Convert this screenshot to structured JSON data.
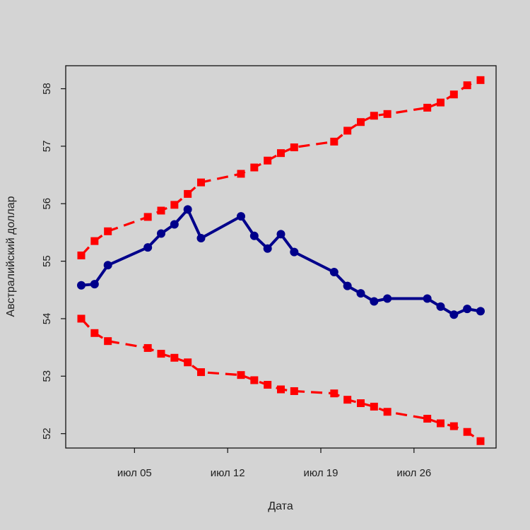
{
  "chart_data": {
    "type": "line",
    "title": "",
    "xlabel": "Дата",
    "ylabel": "Австралийский доллар",
    "x_ticks": [
      "июл 05",
      "июл 12",
      "июл 19",
      "июл 26"
    ],
    "x_tick_days": [
      5,
      12,
      19,
      26
    ],
    "xlim": [
      1,
      31
    ],
    "y_ticks": [
      52,
      53,
      54,
      55,
      56,
      57,
      58
    ],
    "ylim": [
      51.75,
      58.4
    ],
    "grid": false,
    "legend": "none",
    "x_days": [
      1,
      2,
      3,
      6,
      7,
      8,
      9,
      10,
      13,
      14,
      15,
      16,
      17,
      20,
      21,
      22,
      23,
      24,
      27,
      28,
      29,
      30,
      31
    ],
    "series": [
      {
        "color": "#00008b",
        "style": "solid",
        "marker": "circle",
        "values": [
          54.58,
          54.6,
          54.93,
          55.24,
          55.48,
          55.64,
          55.9,
          55.4,
          55.78,
          55.44,
          55.22,
          55.47,
          55.16,
          54.81,
          54.57,
          54.44,
          54.3,
          54.35,
          54.35,
          54.21,
          54.07,
          54.17,
          54.13
        ]
      },
      {
        "color": "#ff0000",
        "style": "dashed",
        "marker": "square",
        "values": [
          55.1,
          55.35,
          55.52,
          55.77,
          55.88,
          55.98,
          56.17,
          56.37,
          56.52,
          56.63,
          56.75,
          56.88,
          56.98,
          57.08,
          57.27,
          57.42,
          57.53,
          57.56,
          57.67,
          57.76,
          57.9,
          58.06,
          58.15
        ]
      },
      {
        "color": "#ff0000",
        "style": "dashed",
        "marker": "square",
        "values": [
          54.0,
          53.75,
          53.61,
          53.49,
          53.39,
          53.32,
          53.24,
          53.07,
          53.02,
          52.93,
          52.85,
          52.77,
          52.74,
          52.7,
          52.59,
          52.53,
          52.47,
          52.38,
          52.26,
          52.18,
          52.13,
          52.03,
          51.87
        ]
      }
    ]
  }
}
